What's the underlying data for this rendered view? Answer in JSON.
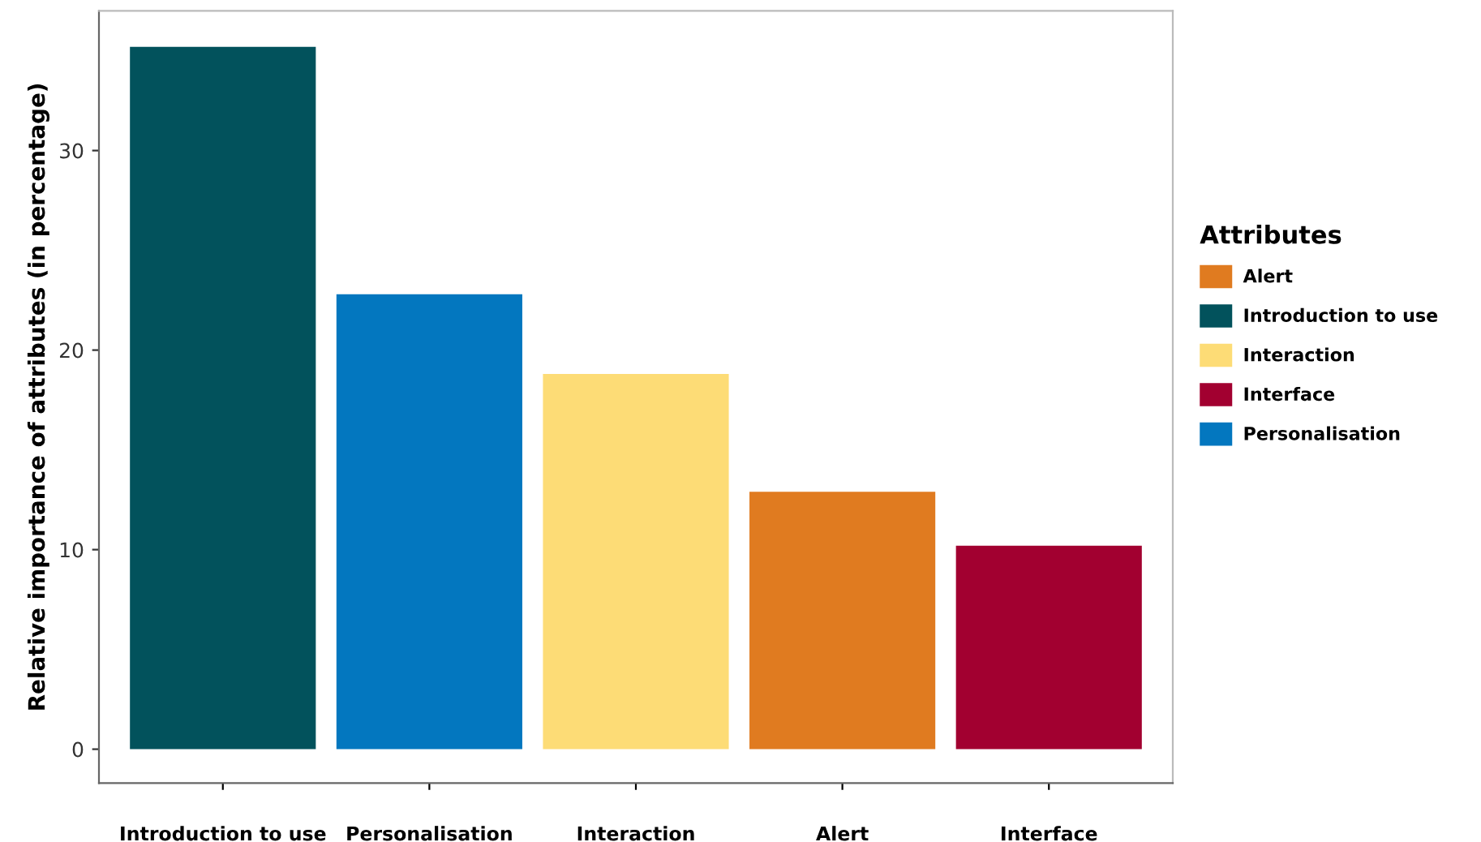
{
  "chart_data": {
    "type": "bar",
    "ylabel": "Relative importance of attributes (in percentage)",
    "legend_title": "Attributes",
    "categories": [
      "Introduction to use",
      "Personalisation",
      "Interaction",
      "Alert",
      "Interface"
    ],
    "series": [
      {
        "name": "Alert",
        "color": "#e07b20",
        "values": [
          null,
          null,
          null,
          12.9,
          null
        ]
      },
      {
        "name": "Introduction to use",
        "color": "#02525c",
        "values": [
          35.2,
          null,
          null,
          null,
          null
        ]
      },
      {
        "name": "Interaction",
        "color": "#fddc76",
        "values": [
          null,
          null,
          18.8,
          null,
          null
        ]
      },
      {
        "name": "Interface",
        "color": "#a20030",
        "values": [
          null,
          null,
          null,
          null,
          10.2
        ]
      },
      {
        "name": "Personalisation",
        "color": "#0377bf",
        "values": [
          null,
          22.8,
          null,
          null,
          null
        ]
      }
    ],
    "ylim": [
      -1.7,
      37.0
    ],
    "yticks": [
      0,
      10,
      20,
      30
    ],
    "grid": false,
    "legend": "right"
  }
}
